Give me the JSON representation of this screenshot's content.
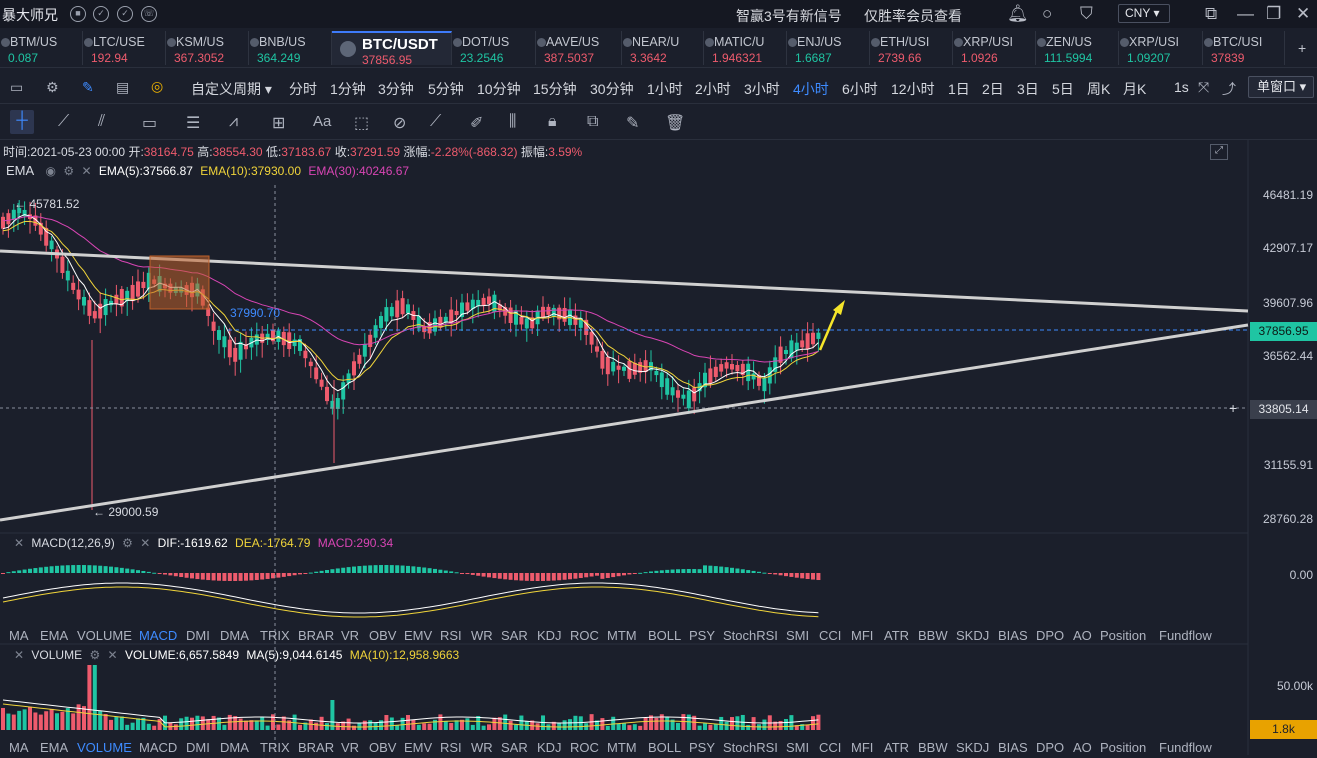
{
  "app": {
    "title": "暴大师兄"
  },
  "promo": {
    "text1": "智赢3号有新信号",
    "text2": "仅胜率会员查看"
  },
  "currency": "CNY",
  "tickers": [
    {
      "name": "BTM/US",
      "price": "0.087",
      "dir": "up",
      "active": false
    },
    {
      "name": "LTC/USE",
      "price": "192.94",
      "dir": "dn",
      "active": false
    },
    {
      "name": "KSM/US",
      "price": "367.3052",
      "dir": "dn",
      "active": false
    },
    {
      "name": "BNB/US",
      "price": "364.249",
      "dir": "up",
      "active": false
    },
    {
      "name": "BTC/USDT",
      "price": "37856.95",
      "dir": "dn",
      "active": true
    },
    {
      "name": "DOT/US",
      "price": "23.2546",
      "dir": "up",
      "active": false
    },
    {
      "name": "AAVE/US",
      "price": "387.5037",
      "dir": "dn",
      "active": false
    },
    {
      "name": "NEAR/U",
      "price": "3.3642",
      "dir": "dn",
      "active": false
    },
    {
      "name": "MATIC/U",
      "price": "1.946321",
      "dir": "dn",
      "active": false
    },
    {
      "name": "ENJ/US",
      "price": "1.6687",
      "dir": "up",
      "active": false
    },
    {
      "name": "ETH/USI",
      "price": "2739.66",
      "dir": "dn",
      "active": false
    },
    {
      "name": "XRP/USI",
      "price": "1.0926",
      "dir": "dn",
      "active": false
    },
    {
      "name": "ZEN/US",
      "price": "111.5994",
      "dir": "up",
      "active": false
    },
    {
      "name": "XRP/USI",
      "price": "1.09207",
      "dir": "up",
      "active": false
    },
    {
      "name": "BTC/USI",
      "price": "37839",
      "dir": "dn",
      "active": false
    }
  ],
  "periods": {
    "custom": "自定义周期",
    "items": [
      "分时",
      "1分钟",
      "3分钟",
      "5分钟",
      "10分钟",
      "15分钟",
      "30分钟",
      "1小时",
      "2小时",
      "3小时",
      "4小时",
      "6小时",
      "12小时",
      "1日",
      "2日",
      "3日",
      "5日",
      "周K",
      "月K"
    ],
    "selected": "4小时",
    "refresh": "1s",
    "window": "单窗口"
  },
  "info": {
    "time_label": "时间:",
    "time": "2021-05-23 00:00",
    "open_label": "开:",
    "open": "38164.75",
    "high_label": "高:",
    "high": "38554.30",
    "low_label": "低:",
    "low": "37183.67",
    "close_label": "收:",
    "close": "37291.59",
    "chg_label": "涨幅:",
    "chg": "-2.28%(-868.32)",
    "amp_label": "振幅:",
    "amp": "3.59%"
  },
  "ema": {
    "name": "EMA",
    "ema5": "EMA(5):37566.87",
    "ema10": "EMA(10):37930.00",
    "ema30": "EMA(30):40246.67"
  },
  "price_axis": [
    "46481.19",
    "42907.17",
    "39607.96",
    "36562.44",
    "31155.91",
    "28760.28"
  ],
  "current_price": "37856.95",
  "crosshair_price": "33805.14",
  "annotations": {
    "high": "← 45781.52",
    "low": "← 29000.59",
    "level": "37990.70"
  },
  "macd": {
    "title": "MACD(12,26,9)",
    "dif": "DIF:-1619.62",
    "dea": "DEA:-1764.79",
    "macd": "MACD:290.34",
    "axis": "0.00"
  },
  "indicator_tabs": [
    "MA",
    "EMA",
    "VOLUME",
    "MACD",
    "DMI",
    "DMA",
    "TRIX",
    "BRAR",
    "VR",
    "OBV",
    "EMV",
    "RSI",
    "WR",
    "SAR",
    "KDJ",
    "ROC",
    "MTM",
    "BOLL",
    "PSY",
    "StochRSI",
    "SMI",
    "CCI",
    "MFI",
    "ATR",
    "BBW",
    "SKDJ",
    "BIAS",
    "DPO",
    "AO",
    "Position",
    "Fundflow"
  ],
  "indicator_tabs_selected_1": "MACD",
  "indicator_tabs_selected_2": "VOLUME",
  "volume": {
    "title": "VOLUME",
    "vol": "VOLUME:6,657.5849",
    "ma5": "MA(5):9,044.6145",
    "ma10": "MA(10):12,958.9663",
    "axis": "50.00k",
    "current": "1.8k"
  },
  "colors": {
    "up": "#1fc5a3",
    "down": "#ee5b6d",
    "accent": "#3e8bff",
    "ema5": "#ffffff",
    "ema10": "#f0d43a",
    "ema30": "#d845b4"
  }
}
